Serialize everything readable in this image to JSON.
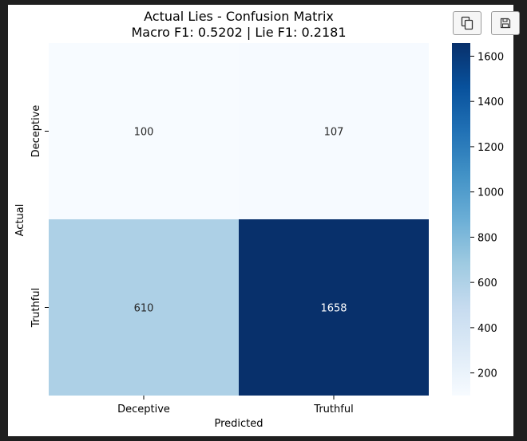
{
  "toolbar": {
    "icons": [
      "copy-icon",
      "save-icon"
    ]
  },
  "chart_data": {
    "type": "heatmap",
    "title": "Actual Lies - Confusion Matrix",
    "subtitle": "Macro F1: 0.5202 | Lie F1: 0.2181",
    "xlabel": "Predicted",
    "ylabel": "Actual",
    "x_categories": [
      "Deceptive",
      "Truthful"
    ],
    "y_categories": [
      "Deceptive",
      "Truthful"
    ],
    "values": [
      [
        100,
        107
      ],
      [
        610,
        1658
      ]
    ],
    "cell_labels": [
      [
        "100",
        "107"
      ],
      [
        "610",
        "1658"
      ]
    ],
    "colormap": "Blues",
    "vmin": 100,
    "vmax": 1658,
    "colorbar_ticks": [
      200,
      400,
      600,
      800,
      1000,
      1200,
      1400,
      1600
    ],
    "colorbar_tick_labels": [
      "200",
      "400",
      "600",
      "800",
      "1000",
      "1200",
      "1400",
      "1600"
    ]
  }
}
